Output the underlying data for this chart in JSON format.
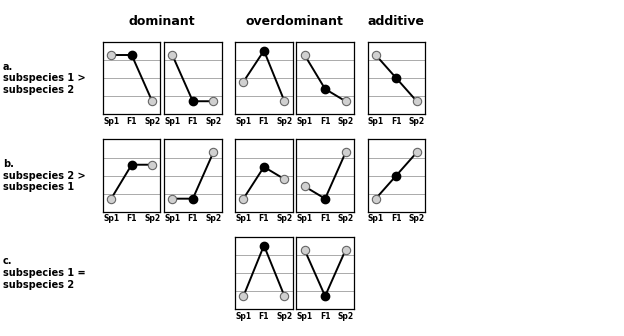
{
  "title_dominant": "dominant",
  "title_overdominant": "overdominant",
  "title_additive": "additive",
  "row_labels": [
    "a.\nsubspecies 1 >\nsubspecies 2",
    "b.\nsubspecies 2 >\nsubspecies 1",
    "c.\nsubspecies 1 =\nsubspecies 2"
  ],
  "tick_labels": [
    "Sp1",
    "F1",
    "Sp2"
  ],
  "panels": [
    {
      "row": 0,
      "col": 0,
      "y": [
        0.82,
        0.82,
        0.18
      ],
      "filled": [
        false,
        true,
        false
      ]
    },
    {
      "row": 0,
      "col": 1,
      "y": [
        0.82,
        0.18,
        0.18
      ],
      "filled": [
        false,
        true,
        false
      ]
    },
    {
      "row": 0,
      "col": 2,
      "y": [
        0.45,
        0.88,
        0.18
      ],
      "filled": [
        false,
        true,
        false
      ]
    },
    {
      "row": 0,
      "col": 3,
      "y": [
        0.82,
        0.35,
        0.18
      ],
      "filled": [
        false,
        true,
        false
      ]
    },
    {
      "row": 0,
      "col": 4,
      "y": [
        0.82,
        0.5,
        0.18
      ],
      "filled": [
        false,
        true,
        false
      ]
    },
    {
      "row": 1,
      "col": 0,
      "y": [
        0.18,
        0.65,
        0.65
      ],
      "filled": [
        false,
        true,
        false
      ]
    },
    {
      "row": 1,
      "col": 1,
      "y": [
        0.18,
        0.18,
        0.82
      ],
      "filled": [
        false,
        true,
        false
      ]
    },
    {
      "row": 1,
      "col": 2,
      "y": [
        0.18,
        0.62,
        0.45
      ],
      "filled": [
        false,
        true,
        false
      ]
    },
    {
      "row": 1,
      "col": 3,
      "y": [
        0.35,
        0.18,
        0.82
      ],
      "filled": [
        false,
        true,
        false
      ]
    },
    {
      "row": 1,
      "col": 4,
      "y": [
        0.18,
        0.5,
        0.82
      ],
      "filled": [
        false,
        true,
        false
      ]
    },
    {
      "row": 2,
      "col": 2,
      "y": [
        0.18,
        0.88,
        0.18
      ],
      "filled": [
        false,
        true,
        false
      ]
    },
    {
      "row": 2,
      "col": 3,
      "y": [
        0.82,
        0.18,
        0.82
      ],
      "filled": [
        false,
        true,
        false
      ]
    }
  ],
  "background_color": "#ffffff",
  "line_color": "#000000",
  "open_marker_facecolor": "#d0d0d0",
  "open_marker_edgecolor": "#666666",
  "filled_marker_color": "#000000",
  "marker_size": 6,
  "grid_color": "#aaaaaa",
  "grid_linewidth": 0.7,
  "spine_linewidth": 0.9,
  "line_linewidth": 1.4
}
